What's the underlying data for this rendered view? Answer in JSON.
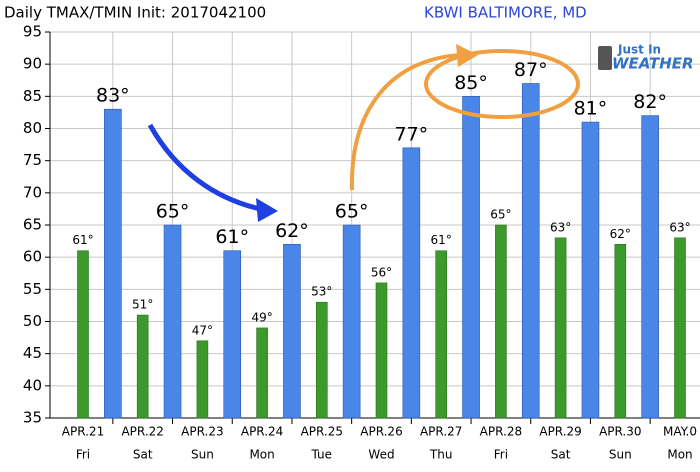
{
  "chart_data": {
    "type": "bar",
    "title": "Daily TMAX/TMIN Init: 2017042100",
    "subtitle": "KBWI BALTIMORE, MD",
    "logo": [
      "Just In",
      "WEATHER"
    ],
    "categories": [
      "APR.21",
      "APR.22",
      "APR.23",
      "APR.24",
      "APR.25",
      "APR.26",
      "APR.27",
      "APR.28",
      "APR.29",
      "APR.30",
      "MAY.0"
    ],
    "weekdays": [
      "Fri",
      "Sat",
      "Sun",
      "Mon",
      "Tue",
      "Wed",
      "Thu",
      "Fri",
      "Sat",
      "Sun",
      "Mon"
    ],
    "series": [
      {
        "color": "#3c9a2c",
        "values": [
          61,
          51,
          47,
          49,
          53,
          56,
          61,
          65,
          63,
          62,
          63
        ],
        "value_labels": [
          "61°",
          "51°",
          "47°",
          "49°",
          "53°",
          "56°",
          "61°",
          "65°",
          "63°",
          "62°",
          "63°"
        ]
      },
      {
        "color": "#4a86e8",
        "values": [
          83,
          65,
          61,
          62,
          65,
          77,
          85,
          87,
          81,
          82,
          null
        ],
        "value_labels": [
          "83°",
          "65°",
          "61°",
          "62°",
          "65°",
          "77°",
          "85°",
          "87°",
          "81°",
          "82°",
          null
        ]
      }
    ],
    "ylim": [
      35,
      95
    ],
    "yticks": [
      35,
      40,
      45,
      50,
      55,
      60,
      65,
      70,
      75,
      80,
      85,
      90,
      95
    ],
    "grid": true
  }
}
